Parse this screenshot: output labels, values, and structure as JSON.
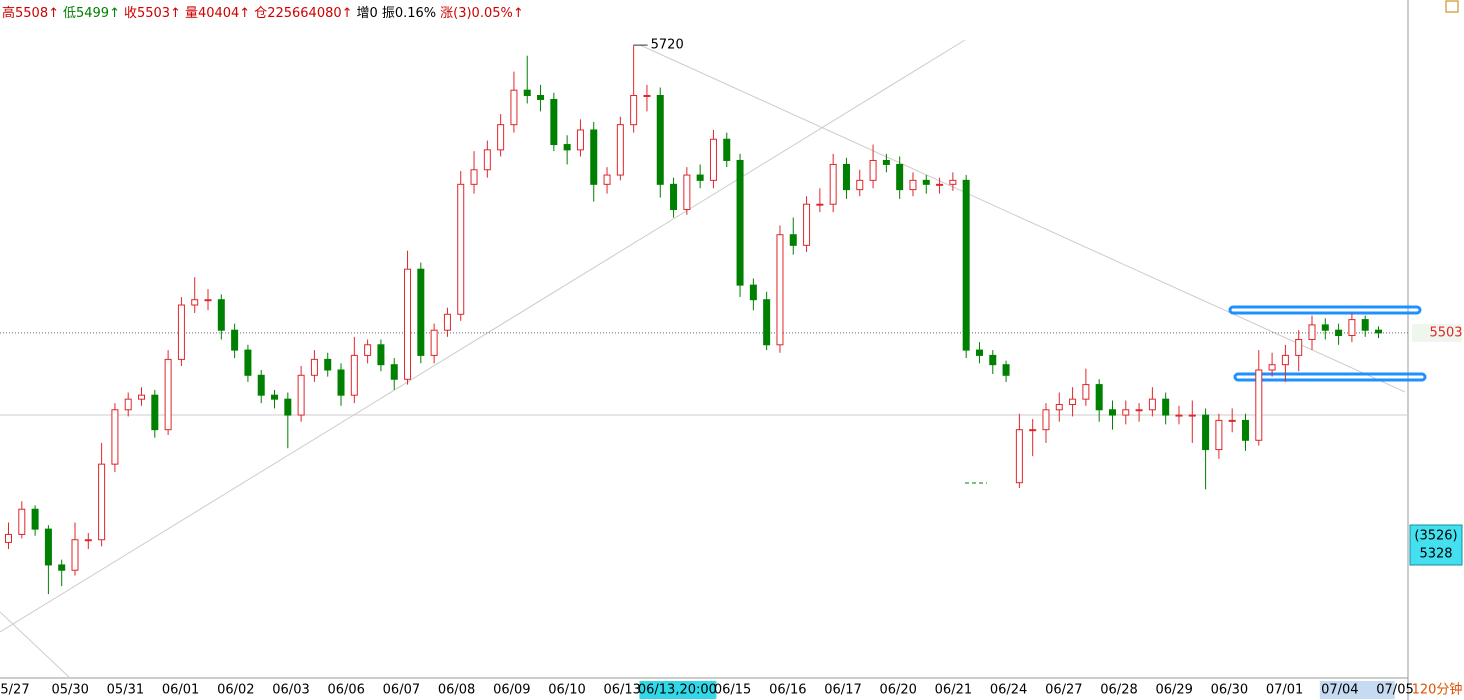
{
  "chart_data": {
    "type": "candlestick",
    "header": [
      "高5508↑",
      "低5499↑",
      "收5503↑",
      "量40404↑",
      "仓225664080↑",
      "增0",
      "振0.16%",
      "涨(3)0.05%↑"
    ],
    "header_colors": [
      "#d00000",
      "#008000",
      "#d00000",
      "#d00000",
      "#d00000",
      "#000000",
      "#000000",
      "#d00000"
    ],
    "x_labels": [
      "5/27",
      "05/30",
      "05/31",
      "06/01",
      "06/02",
      "06/03",
      "06/06",
      "06/07",
      "06/08",
      "06/09",
      "06/10",
      "06/13",
      "06/13,20:00",
      "06/15",
      "06/16",
      "06/17",
      "06/20",
      "06/21",
      "06/24",
      "06/27",
      "06/28",
      "06/29",
      "06/30",
      "07/01",
      "07/04",
      "07/05"
    ],
    "period": "120分钟",
    "cursor_count": "(3526)",
    "cursor_price": 5328,
    "ylim": [
      5245,
      5754
    ],
    "up_color": "#e0262b",
    "down_color": "#008000",
    "candles": [
      [
        5345,
        5360,
        5340,
        5351
      ],
      [
        5351,
        5376,
        5348,
        5370
      ],
      [
        5370,
        5373,
        5350,
        5355
      ],
      [
        5355,
        5358,
        5306,
        5328
      ],
      [
        5328,
        5332,
        5312,
        5324
      ],
      [
        5324,
        5360,
        5320,
        5347
      ],
      [
        5347,
        5352,
        5340,
        5347
      ],
      [
        5347,
        5420,
        5342,
        5404
      ],
      [
        5404,
        5450,
        5398,
        5445
      ],
      [
        5445,
        5458,
        5440,
        5453
      ],
      [
        5453,
        5462,
        5448,
        5456
      ],
      [
        5456,
        5460,
        5424,
        5430
      ],
      [
        5430,
        5490,
        5426,
        5483
      ],
      [
        5483,
        5530,
        5478,
        5524
      ],
      [
        5524,
        5545,
        5518,
        5528
      ],
      [
        5528,
        5536,
        5520,
        5528
      ],
      [
        5528,
        5532,
        5498,
        5505
      ],
      [
        5505,
        5510,
        5484,
        5490
      ],
      [
        5490,
        5494,
        5466,
        5471
      ],
      [
        5471,
        5475,
        5450,
        5456
      ],
      [
        5456,
        5460,
        5446,
        5453
      ],
      [
        5453,
        5458,
        5416,
        5441
      ],
      [
        5441,
        5478,
        5436,
        5471
      ],
      [
        5471,
        5490,
        5466,
        5483
      ],
      [
        5483,
        5488,
        5470,
        5475
      ],
      [
        5475,
        5480,
        5448,
        5456
      ],
      [
        5456,
        5500,
        5450,
        5486
      ],
      [
        5486,
        5498,
        5480,
        5494
      ],
      [
        5494,
        5498,
        5474,
        5479
      ],
      [
        5479,
        5484,
        5460,
        5468
      ],
      [
        5468,
        5565,
        5464,
        5551
      ],
      [
        5551,
        5556,
        5480,
        5486
      ],
      [
        5486,
        5510,
        5480,
        5505
      ],
      [
        5505,
        5522,
        5500,
        5517
      ],
      [
        5517,
        5625,
        5512,
        5615
      ],
      [
        5615,
        5640,
        5608,
        5626
      ],
      [
        5626,
        5648,
        5620,
        5641
      ],
      [
        5641,
        5668,
        5636,
        5660
      ],
      [
        5660,
        5700,
        5654,
        5686
      ],
      [
        5686,
        5712,
        5676,
        5682
      ],
      [
        5682,
        5690,
        5670,
        5679
      ],
      [
        5679,
        5684,
        5640,
        5645
      ],
      [
        5645,
        5652,
        5630,
        5641
      ],
      [
        5641,
        5664,
        5636,
        5656
      ],
      [
        5656,
        5662,
        5602,
        5615
      ],
      [
        5615,
        5628,
        5608,
        5622
      ],
      [
        5622,
        5666,
        5618,
        5660
      ],
      [
        5660,
        5720,
        5654,
        5682
      ],
      [
        5682,
        5690,
        5670,
        5682
      ],
      [
        5682,
        5688,
        5605,
        5615
      ],
      [
        5615,
        5620,
        5590,
        5596
      ],
      [
        5596,
        5628,
        5592,
        5622
      ],
      [
        5622,
        5630,
        5612,
        5618
      ],
      [
        5618,
        5656,
        5612,
        5649
      ],
      [
        5649,
        5654,
        5628,
        5633
      ],
      [
        5633,
        5638,
        5530,
        5539
      ],
      [
        5539,
        5544,
        5520,
        5528
      ],
      [
        5528,
        5534,
        5490,
        5494
      ],
      [
        5494,
        5584,
        5488,
        5577
      ],
      [
        5577,
        5590,
        5562,
        5569
      ],
      [
        5569,
        5606,
        5564,
        5600
      ],
      [
        5600,
        5612,
        5594,
        5600
      ],
      [
        5600,
        5638,
        5594,
        5630
      ],
      [
        5630,
        5635,
        5604,
        5611
      ],
      [
        5611,
        5626,
        5606,
        5618
      ],
      [
        5618,
        5645,
        5612,
        5633
      ],
      [
        5633,
        5638,
        5624,
        5630
      ],
      [
        5630,
        5636,
        5604,
        5611
      ],
      [
        5611,
        5624,
        5606,
        5618
      ],
      [
        5618,
        5622,
        5608,
        5615
      ],
      [
        5615,
        5620,
        5608,
        5615
      ],
      [
        5615,
        5624,
        5610,
        5618
      ],
      [
        5618,
        5622,
        5484,
        5490
      ],
      [
        5490,
        5496,
        5480,
        5486
      ],
      [
        5486,
        5490,
        5472,
        5479
      ],
      [
        5479,
        5482,
        5466,
        5471
      ],
      [
        5390,
        5442,
        5386,
        5430
      ],
      [
        5430,
        5438,
        5410,
        5430
      ],
      [
        5430,
        5450,
        5420,
        5445
      ],
      [
        5445,
        5458,
        5436,
        5449
      ],
      [
        5449,
        5462,
        5440,
        5453
      ],
      [
        5453,
        5476,
        5448,
        5464
      ],
      [
        5464,
        5468,
        5436,
        5445
      ],
      [
        5445,
        5452,
        5430,
        5441
      ],
      [
        5441,
        5452,
        5434,
        5445
      ],
      [
        5445,
        5450,
        5436,
        5445
      ],
      [
        5445,
        5462,
        5440,
        5453
      ],
      [
        5453,
        5458,
        5434,
        5441
      ],
      [
        5441,
        5448,
        5434,
        5441
      ],
      [
        5441,
        5452,
        5420,
        5441
      ],
      [
        5441,
        5446,
        5385,
        5415
      ],
      [
        5415,
        5442,
        5408,
        5437
      ],
      [
        5437,
        5446,
        5428,
        5437
      ],
      [
        5437,
        5442,
        5414,
        5422
      ],
      [
        5422,
        5490,
        5418,
        5475
      ],
      [
        5475,
        5488,
        5470,
        5479
      ],
      [
        5479,
        5494,
        5466,
        5486
      ],
      [
        5486,
        5505,
        5474,
        5498
      ],
      [
        5498,
        5516,
        5490,
        5509
      ],
      [
        5509,
        5514,
        5498,
        5505
      ],
      [
        5505,
        5510,
        5494,
        5501
      ],
      [
        5501,
        5518,
        5496,
        5513
      ],
      [
        5513,
        5516,
        5500,
        5505
      ],
      [
        5505,
        5508,
        5499,
        5503
      ]
    ]
  }
}
